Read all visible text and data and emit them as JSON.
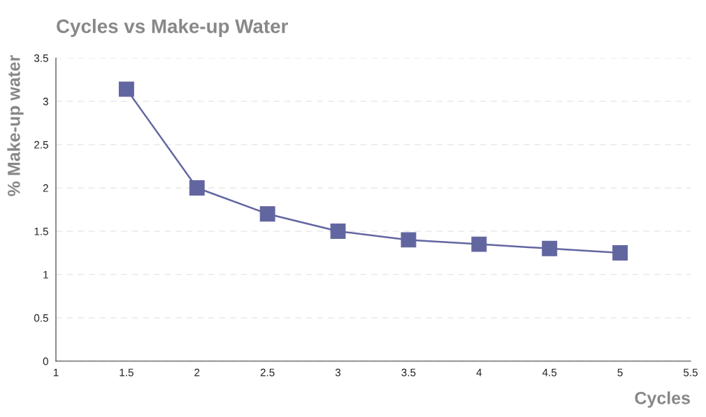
{
  "chart_data": {
    "type": "line",
    "title": "Cycles vs Make-up Water",
    "xlabel": "Cycles",
    "ylabel": "% Make-up water",
    "x": [
      1.5,
      2,
      2.5,
      3,
      3.5,
      4,
      4.5,
      5
    ],
    "series": [
      {
        "color": "#6266a0",
        "values": [
          3.14,
          2.0,
          1.7,
          1.5,
          1.4,
          1.35,
          1.3,
          1.25
        ]
      }
    ],
    "xlim": [
      1,
      5.5
    ],
    "xticks": [
      1,
      1.5,
      2,
      2.5,
      3,
      3.5,
      4,
      4.5,
      5,
      5.5
    ],
    "ylim": [
      0,
      3.5
    ],
    "yticks": [
      0,
      0.5,
      1,
      1.5,
      2,
      2.5,
      3,
      3.5
    ],
    "grid": "y",
    "legend": false,
    "marker": "square",
    "line_style": "solid"
  }
}
